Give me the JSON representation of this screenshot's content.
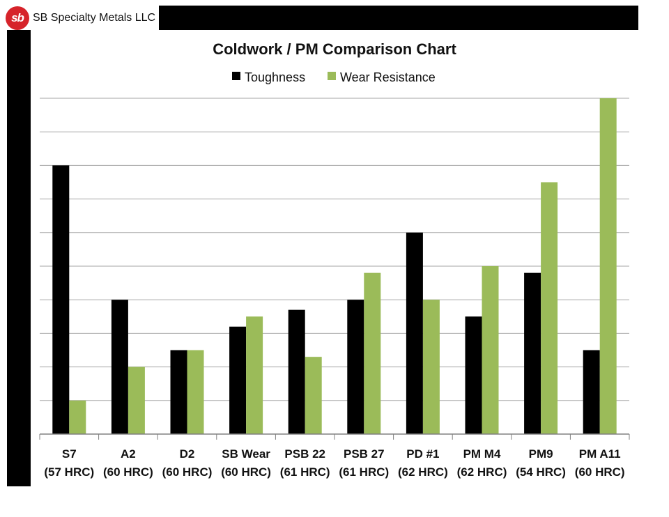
{
  "header": {
    "logo_text": "sb",
    "company_name": "SB Specialty Metals LLC"
  },
  "colors": {
    "toughness": "#000000",
    "wear_resistance": "#9bbb59",
    "gridline": "#a6a6a6"
  },
  "chart_data": {
    "type": "bar",
    "title": "Coldwork / PM Comparison Chart",
    "categories": [
      [
        "S7",
        "(57 HRC)"
      ],
      [
        "A2",
        "(60 HRC)"
      ],
      [
        "D2",
        "(60 HRC)"
      ],
      [
        "SB Wear",
        "(60 HRC)"
      ],
      [
        "PSB 22",
        "(61 HRC)"
      ],
      [
        "PSB 27",
        "(61 HRC)"
      ],
      [
        "PD #1",
        "(62 HRC)"
      ],
      [
        "PM M4",
        "(62 HRC)"
      ],
      [
        "PM9",
        "(54 HRC)"
      ],
      [
        "PM A11",
        "(60 HRC)"
      ]
    ],
    "series": [
      {
        "name": "Toughness",
        "values": [
          8,
          4,
          2.5,
          3.2,
          3.7,
          4,
          6,
          3.5,
          4.8,
          2.5
        ]
      },
      {
        "name": "Wear Resistance",
        "values": [
          1,
          2,
          2.5,
          3.5,
          2.3,
          4.8,
          4,
          5,
          7.5,
          10
        ]
      }
    ],
    "ylim": [
      0,
      10
    ],
    "grid": true,
    "legend": "top-center",
    "xlabel": "",
    "ylabel": ""
  }
}
